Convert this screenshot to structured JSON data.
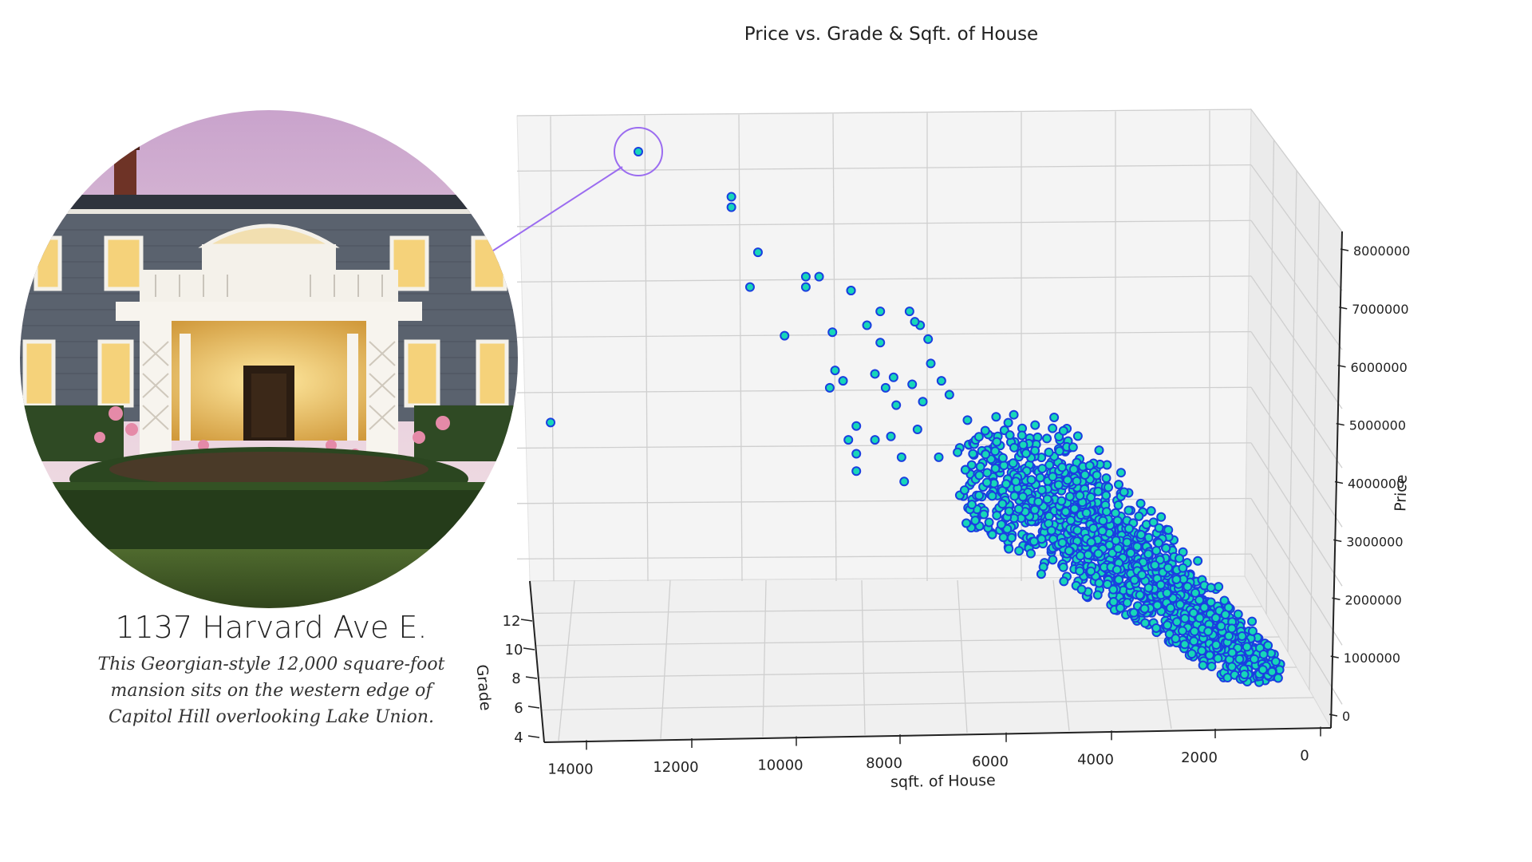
{
  "listing": {
    "address": "1137 Harvard Ave E.",
    "caption": "This Georgian-style 12,000 square-foot mansion sits on the western edge of Capitol Hill overlooking Lake Union."
  },
  "chart_data": {
    "type": "scatter",
    "title": "Price vs. Grade & Sqft. of House",
    "xlabel": "sqft. of House",
    "ylabel": "Grade",
    "zlabel": "Price",
    "x_ticks": [
      "14000",
      "12000",
      "10000",
      "8000",
      "6000",
      "4000",
      "2000",
      "0"
    ],
    "y_ticks": [
      "4",
      "6",
      "8",
      "10",
      "12"
    ],
    "z_ticks": [
      "0",
      "1000000",
      "2000000",
      "3000000",
      "4000000",
      "5000000",
      "6000000",
      "7000000",
      "8000000"
    ],
    "xlim": [
      0,
      14500
    ],
    "zlim": [
      0,
      8000000
    ],
    "grid": true,
    "colors": {
      "point_fill": "#17d6b8",
      "point_edge": "#1a3fe0",
      "highlight": "#9b6cf0"
    },
    "highlight": {
      "sqft": 12050,
      "grade": 13,
      "price": 7700000
    },
    "series": [
      {
        "points": [
          [
            12050,
            7700000
          ],
          [
            10300,
            7050000
          ],
          [
            10300,
            6900000
          ],
          [
            9800,
            6250000
          ],
          [
            9950,
            5750000
          ],
          [
            8900,
            5900000
          ],
          [
            8900,
            5750000
          ],
          [
            8650,
            5900000
          ],
          [
            13700,
            3800000
          ],
          [
            9300,
            5050000
          ],
          [
            8400,
            5100000
          ],
          [
            8050,
            5700000
          ],
          [
            8050,
            5700000
          ],
          [
            7750,
            5200000
          ],
          [
            7500,
            5400000
          ],
          [
            7500,
            4950000
          ],
          [
            6950,
            5400000
          ],
          [
            6750,
            5200000
          ],
          [
            6850,
            5250000
          ],
          [
            6600,
            5000000
          ],
          [
            7600,
            4500000
          ],
          [
            7400,
            4300000
          ],
          [
            7250,
            4450000
          ],
          [
            7200,
            4050000
          ],
          [
            6900,
            4350000
          ],
          [
            6700,
            4100000
          ],
          [
            6550,
            4650000
          ],
          [
            6350,
            4400000
          ],
          [
            6200,
            4200000
          ],
          [
            8350,
            4550000
          ],
          [
            8200,
            4400000
          ],
          [
            8450,
            4300000
          ],
          [
            7300,
            3600000
          ],
          [
            7100,
            3300000
          ],
          [
            7050,
            2950000
          ],
          [
            6800,
            3700000
          ],
          [
            6400,
            3300000
          ],
          [
            7950,
            3750000
          ],
          [
            7950,
            3350000
          ],
          [
            7950,
            3100000
          ],
          [
            8100,
            3550000
          ],
          [
            7600,
            3550000
          ]
        ]
      }
    ]
  }
}
